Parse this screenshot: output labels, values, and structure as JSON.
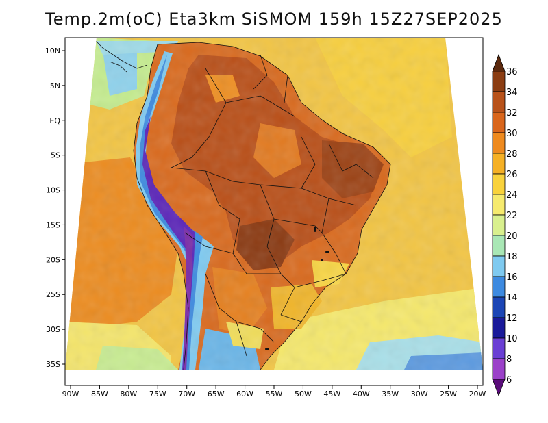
{
  "title": "Temp.2m(oC) Eta3km SiSMOM 159h 15Z27SEP2025",
  "map": {
    "lon_labels": [
      "90W",
      "85W",
      "80W",
      "75W",
      "70W",
      "65W",
      "60W",
      "55W",
      "50W",
      "45W",
      "40W",
      "35W",
      "30W",
      "25W",
      "20W"
    ],
    "lat_labels": [
      "10N",
      "5N",
      "EQ",
      "5S",
      "10S",
      "15S",
      "20S",
      "25S",
      "30S",
      "35S"
    ],
    "lon_range": [
      -90,
      -20
    ],
    "lat_range": [
      -38,
      12
    ]
  },
  "colorbar": {
    "labels": [
      "36",
      "34",
      "32",
      "30",
      "28",
      "26",
      "24",
      "22",
      "20",
      "18",
      "16",
      "14",
      "12",
      "10",
      "8",
      "6"
    ],
    "colors": [
      "#5c2a0e",
      "#8b3d12",
      "#b8521a",
      "#d9661c",
      "#ee8a1f",
      "#f5b025",
      "#f9d23c",
      "#f6ea6e",
      "#d9f08e",
      "#a9e7b5",
      "#7fcaf0",
      "#3d8ae0",
      "#1b45b5",
      "#1a1a9a",
      "#6a3fd4",
      "#9b41c9",
      "#5a0c7a"
    ],
    "unit": "oC"
  },
  "legend_fields": {
    "ocean_color": "#f0c84a",
    "cold_ocean_color": "#a8d8f0",
    "warm_land_color": "#d9661c",
    "hot_land_color": "#a8481a",
    "andes_color": "#5a24b8"
  }
}
